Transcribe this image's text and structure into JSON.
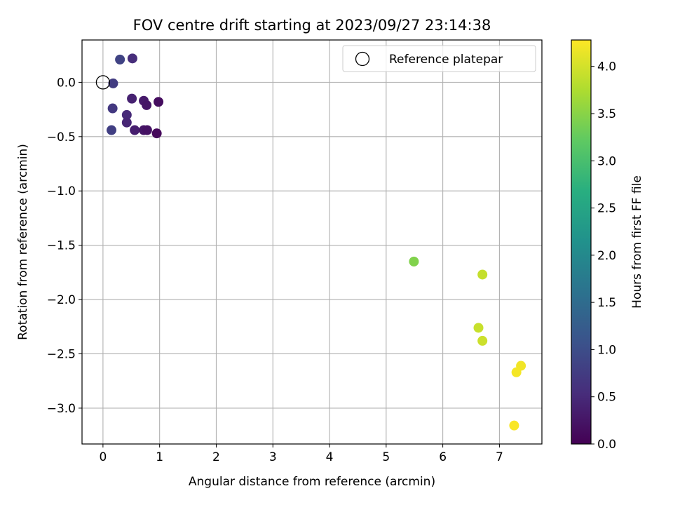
{
  "chart_data": {
    "type": "scatter",
    "title": "FOV centre drift starting at 2023/09/27 23:14:38",
    "xlabel": "Angular distance from reference (arcmin)",
    "ylabel": "Rotation from reference (arcmin)",
    "xlim": [
      -0.37,
      7.75
    ],
    "ylim": [
      -3.33,
      0.39
    ],
    "xticks": [
      0,
      1,
      2,
      3,
      4,
      5,
      6,
      7
    ],
    "yticks": [
      0.0,
      -0.5,
      -1.0,
      -1.5,
      -2.0,
      -2.5,
      -3.0
    ],
    "xtick_labels": [
      "0",
      "1",
      "2",
      "3",
      "4",
      "5",
      "6",
      "7"
    ],
    "ytick_labels": [
      "0.0",
      "−0.5",
      "−1.0",
      "−1.5",
      "−2.0",
      "−2.5",
      "−3.0"
    ],
    "grid": true,
    "colormap": "viridis",
    "colorbar": {
      "label": "Hours from first FF file",
      "range": [
        0.0,
        4.28
      ],
      "ticks": [
        0.0,
        0.5,
        1.0,
        1.5,
        2.0,
        2.5,
        3.0,
        3.5,
        4.0
      ],
      "tick_labels": [
        "0.0",
        "0.5",
        "1.0",
        "1.5",
        "2.0",
        "2.5",
        "3.0",
        "3.5",
        "4.0"
      ]
    },
    "legend": {
      "placement": "top-right",
      "entries": [
        {
          "label": "Reference platepar",
          "marker": "open-circle"
        }
      ]
    },
    "reference_point": {
      "x": 0.0,
      "y": 0.0
    },
    "points": [
      {
        "x": 0.3,
        "y": 0.21,
        "hours": 0.85
      },
      {
        "x": 0.52,
        "y": 0.22,
        "hours": 0.55
      },
      {
        "x": 0.18,
        "y": -0.01,
        "hours": 0.75
      },
      {
        "x": 0.51,
        "y": -0.15,
        "hours": 0.4
      },
      {
        "x": 0.72,
        "y": -0.17,
        "hours": 0.3
      },
      {
        "x": 0.77,
        "y": -0.21,
        "hours": 0.25
      },
      {
        "x": 0.98,
        "y": -0.18,
        "hours": 0.15
      },
      {
        "x": 0.17,
        "y": -0.24,
        "hours": 0.7
      },
      {
        "x": 0.42,
        "y": -0.3,
        "hours": 0.5
      },
      {
        "x": 0.42,
        "y": -0.37,
        "hours": 0.45
      },
      {
        "x": 0.15,
        "y": -0.44,
        "hours": 0.8
      },
      {
        "x": 0.56,
        "y": -0.44,
        "hours": 0.35
      },
      {
        "x": 0.72,
        "y": -0.44,
        "hours": 0.25
      },
      {
        "x": 0.78,
        "y": -0.44,
        "hours": 0.2
      },
      {
        "x": 0.95,
        "y": -0.47,
        "hours": 0.1
      },
      {
        "x": 5.49,
        "y": -1.65,
        "hours": 3.45
      },
      {
        "x": 6.7,
        "y": -1.77,
        "hours": 3.9
      },
      {
        "x": 6.63,
        "y": -2.26,
        "hours": 3.92
      },
      {
        "x": 6.7,
        "y": -2.38,
        "hours": 3.95
      },
      {
        "x": 7.38,
        "y": -2.61,
        "hours": 4.2
      },
      {
        "x": 7.3,
        "y": -2.67,
        "hours": 4.22
      },
      {
        "x": 7.26,
        "y": -3.16,
        "hours": 4.25
      }
    ]
  }
}
